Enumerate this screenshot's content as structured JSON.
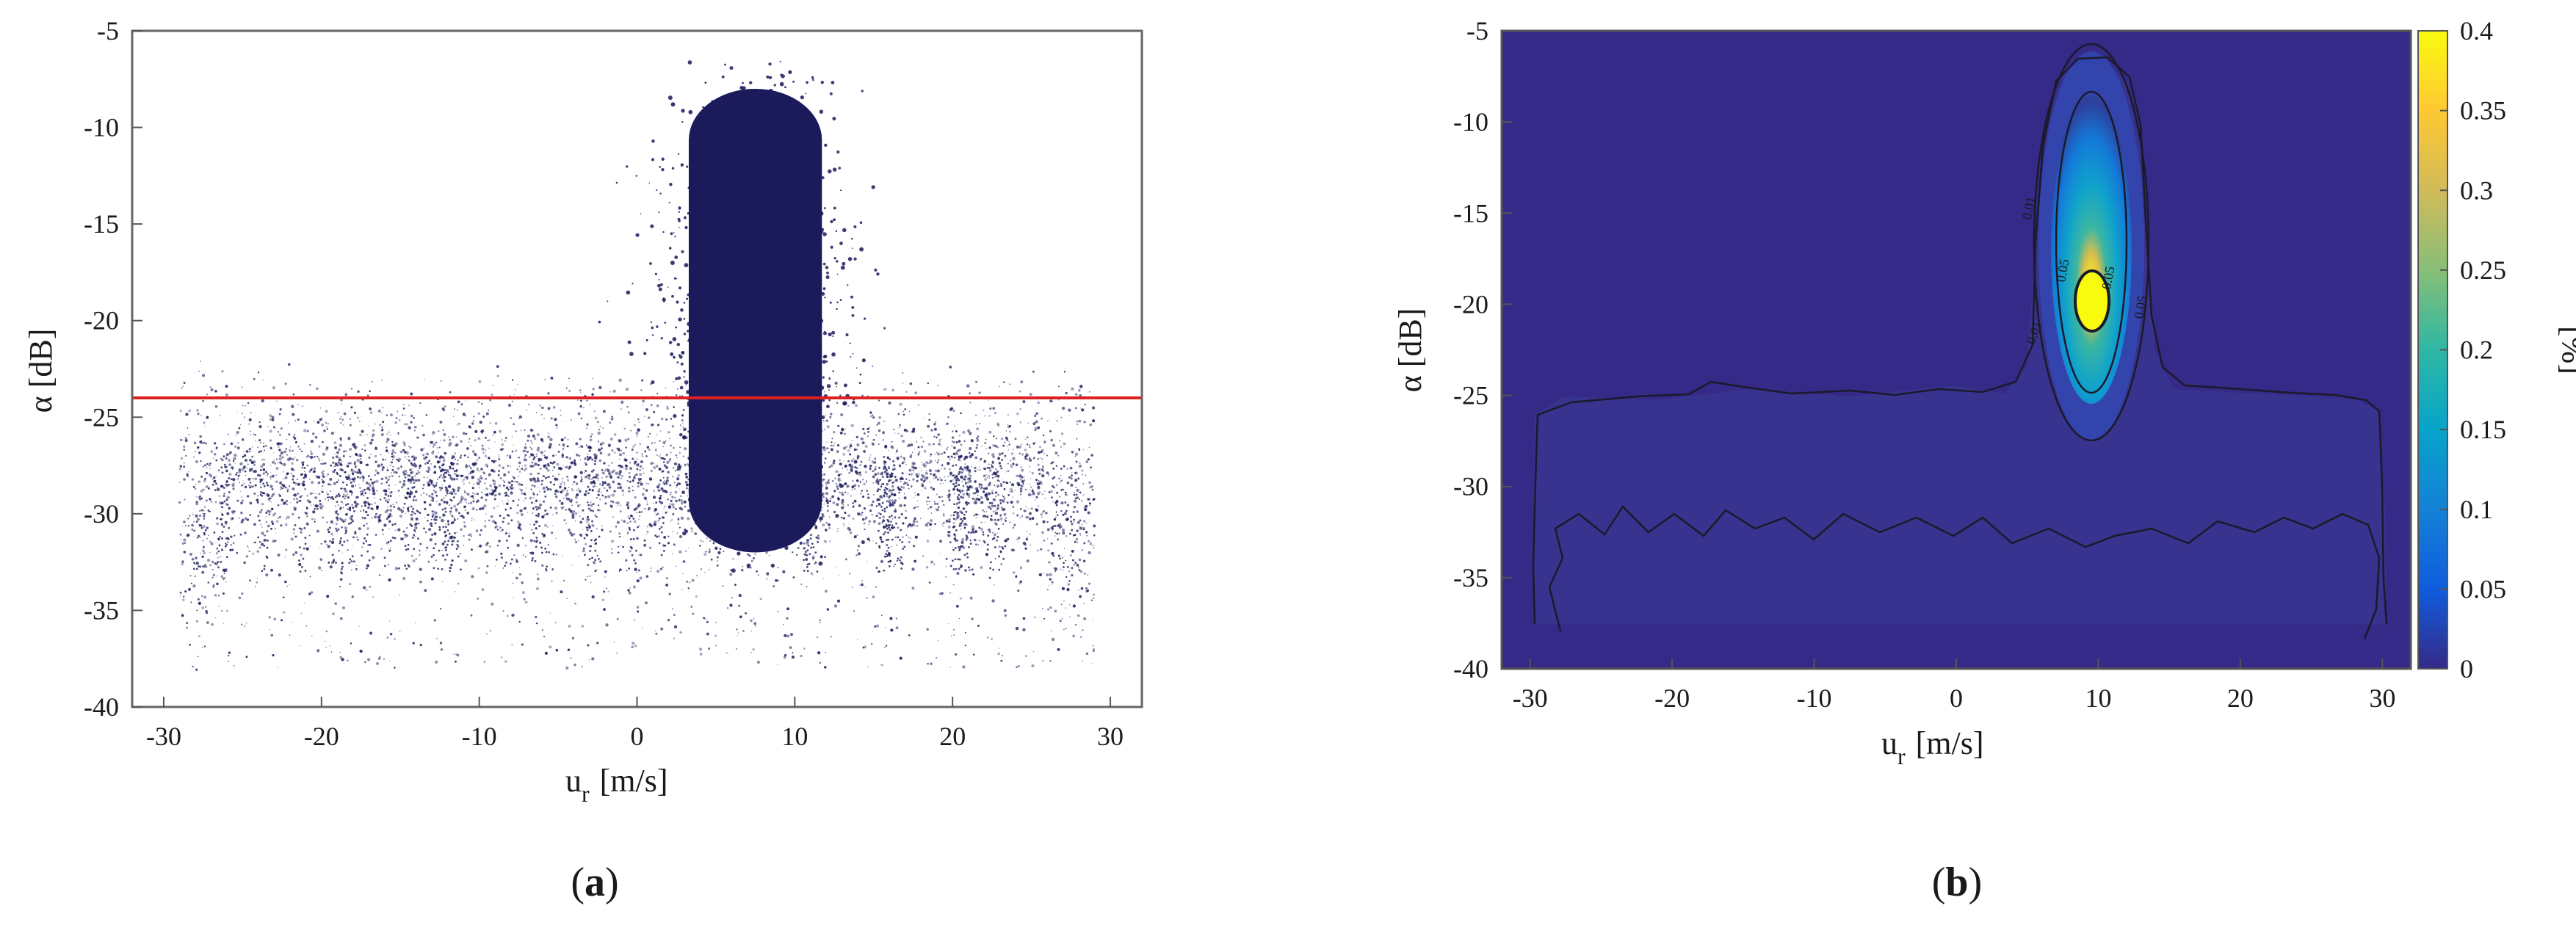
{
  "figure": {
    "panels": [
      {
        "label_open": "(",
        "label_letter": "a",
        "label_close": ")"
      },
      {
        "label_open": "(",
        "label_letter": "b",
        "label_close": ")"
      }
    ]
  },
  "chart_data": [
    {
      "type": "scatter",
      "title": "",
      "xlabel": "u",
      "xlabel_sub": "r",
      "xlabel_unit": "[m/s]",
      "ylabel": "α [dB]",
      "xlim": [
        -32,
        32
      ],
      "ylim": [
        -40,
        -5
      ],
      "xticks": [
        -30,
        -20,
        -10,
        0,
        10,
        20,
        30
      ],
      "yticks": [
        -5,
        -10,
        -15,
        -20,
        -25,
        -30,
        -35,
        -40
      ],
      "grid": false,
      "colors": {
        "points": "#1b1b5c",
        "threshold": "#e02020",
        "frame": "#666666"
      },
      "threshold": {
        "y": -24
      },
      "clusters": [
        {
          "name": "core",
          "x_range": [
            3,
            12
          ],
          "y_range": [
            -32,
            -8
          ],
          "density": "saturated"
        },
        {
          "name": "band",
          "x_range": [
            -29,
            29
          ],
          "y_range": [
            -34,
            -24
          ],
          "density": "sparse"
        }
      ]
    },
    {
      "type": "heatmap",
      "title": "",
      "xlabel": "u",
      "xlabel_sub": "r",
      "xlabel_unit": "[m/s]",
      "ylabel": "α [dB]",
      "colorbar_label": "[%]",
      "xlim": [
        -32,
        32
      ],
      "ylim": [
        -40,
        -5
      ],
      "xticks": [
        -30,
        -20,
        -10,
        0,
        10,
        20,
        30
      ],
      "yticks": [
        -5,
        -10,
        -15,
        -20,
        -25,
        -30,
        -35,
        -40
      ],
      "clim": [
        0,
        0.4
      ],
      "colorbar_ticks": [
        0.4,
        0.35,
        0.3,
        0.25,
        0.2,
        0.15,
        0.1,
        0.05,
        0
      ],
      "colormap": "parula",
      "peak": {
        "x": 8,
        "y": -20,
        "value": 0.4
      },
      "contour_labels": [
        "0.01",
        "0.01",
        "0.05",
        "0.05",
        "0.05"
      ]
    }
  ]
}
